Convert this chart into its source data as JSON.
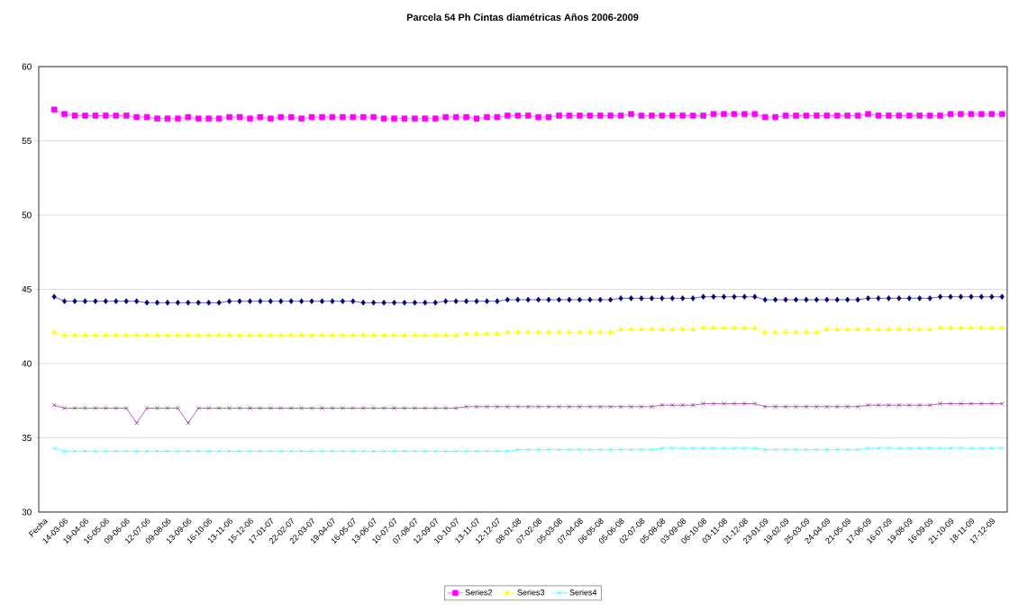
{
  "chart_data": {
    "type": "line",
    "title": "Parcela 54 Ph Cintas diamétricas Años 2006-2009",
    "categories": [
      "Fecha",
      null,
      "14-03-06",
      null,
      "19-04-06",
      null,
      "16-05-06",
      null,
      "09-06-06",
      null,
      "12-07-06",
      null,
      "09-08-06",
      null,
      "13-09-06",
      null,
      "16-10-06",
      null,
      "13-11-06",
      null,
      "15-12-06",
      null,
      "17-01-07",
      null,
      "22-02-07",
      null,
      "22-03-07",
      null,
      "19-04-07",
      null,
      "16-05-07",
      null,
      "13-06-07",
      null,
      "10-07-07",
      null,
      "07-08-07",
      null,
      "12-09-07",
      null,
      "10-10-07",
      null,
      "13-11-07",
      null,
      "12-12-07",
      null,
      "08-01-08",
      null,
      "07-02-08",
      null,
      "05-03-08",
      null,
      "07-04-08",
      null,
      "06-05-08",
      null,
      "05-06-08",
      null,
      "02-07-08",
      null,
      "05-08-08",
      null,
      "03-09-08",
      null,
      "06-10-08",
      null,
      "03-11-08",
      null,
      "01-12-08",
      null,
      "23-01-09",
      null,
      "19-02-09",
      null,
      "25-03-09",
      null,
      "24-04-09",
      null,
      "21-05-09",
      null,
      "17-06-09",
      null,
      "16-07-09",
      null,
      "19-08-09",
      null,
      "16-09-09",
      null,
      "21-10-09",
      null,
      "18-11-09",
      null,
      "17-12-09",
      null
    ],
    "series": [
      {
        "color": "#000080",
        "marker": "diamond",
        "values": [
          null,
          44.5,
          44.2,
          44.2,
          44.2,
          44.2,
          44.2,
          44.2,
          44.2,
          44.2,
          44.1,
          44.1,
          44.1,
          44.1,
          44.1,
          44.1,
          44.1,
          44.1,
          44.2,
          44.2,
          44.2,
          44.2,
          44.2,
          44.2,
          44.2,
          44.2,
          44.2,
          44.2,
          44.2,
          44.2,
          44.2,
          44.1,
          44.1,
          44.1,
          44.1,
          44.1,
          44.1,
          44.1,
          44.1,
          44.2,
          44.2,
          44.2,
          44.2,
          44.2,
          44.2,
          44.3,
          44.3,
          44.3,
          44.3,
          44.3,
          44.3,
          44.3,
          44.3,
          44.3,
          44.3,
          44.3,
          44.4,
          44.4,
          44.4,
          44.4,
          44.4,
          44.4,
          44.4,
          44.4,
          44.5,
          44.5,
          44.5,
          44.5,
          44.5,
          44.5,
          44.3,
          44.3,
          44.3,
          44.3,
          44.3,
          44.3,
          44.3,
          44.3,
          44.3,
          44.3,
          44.4,
          44.4,
          44.4,
          44.4,
          44.4,
          44.4,
          44.4,
          44.5,
          44.5,
          44.5,
          44.5,
          44.5,
          44.5,
          44.5
        ]
      },
      {
        "name": "Series2",
        "color": "#ff00ff",
        "marker": "square",
        "values": [
          null,
          57.1,
          56.8,
          56.7,
          56.7,
          56.7,
          56.7,
          56.7,
          56.7,
          56.6,
          56.6,
          56.5,
          56.5,
          56.5,
          56.6,
          56.5,
          56.5,
          56.5,
          56.6,
          56.6,
          56.5,
          56.6,
          56.5,
          56.6,
          56.6,
          56.5,
          56.6,
          56.6,
          56.6,
          56.6,
          56.6,
          56.6,
          56.6,
          56.5,
          56.5,
          56.5,
          56.5,
          56.5,
          56.5,
          56.6,
          56.6,
          56.6,
          56.5,
          56.6,
          56.6,
          56.7,
          56.7,
          56.7,
          56.6,
          56.6,
          56.7,
          56.7,
          56.7,
          56.7,
          56.7,
          56.7,
          56.7,
          56.8,
          56.7,
          56.7,
          56.7,
          56.7,
          56.7,
          56.7,
          56.7,
          56.8,
          56.8,
          56.8,
          56.8,
          56.8,
          56.6,
          56.6,
          56.7,
          56.7,
          56.7,
          56.7,
          56.7,
          56.7,
          56.7,
          56.7,
          56.8,
          56.7,
          56.7,
          56.7,
          56.7,
          56.7,
          56.7,
          56.7,
          56.8,
          56.8,
          56.8,
          56.8,
          56.8,
          56.8
        ]
      },
      {
        "name": "Series3",
        "color": "#ffff00",
        "marker": "triangle",
        "values": [
          null,
          42.1,
          41.9,
          41.9,
          41.9,
          41.9,
          41.9,
          41.9,
          41.9,
          41.9,
          41.9,
          41.9,
          41.9,
          41.9,
          41.9,
          41.9,
          41.9,
          41.9,
          41.9,
          41.9,
          41.9,
          41.9,
          41.9,
          41.9,
          41.9,
          41.9,
          41.9,
          41.9,
          41.9,
          41.9,
          41.9,
          41.9,
          41.9,
          41.9,
          41.9,
          41.9,
          41.9,
          41.9,
          41.9,
          41.9,
          41.9,
          42.0,
          42.0,
          42.0,
          42.0,
          42.1,
          42.1,
          42.1,
          42.1,
          42.1,
          42.1,
          42.1,
          42.1,
          42.1,
          42.1,
          42.1,
          42.3,
          42.3,
          42.3,
          42.3,
          42.3,
          42.3,
          42.3,
          42.3,
          42.4,
          42.4,
          42.4,
          42.4,
          42.4,
          42.4,
          42.1,
          42.1,
          42.1,
          42.1,
          42.1,
          42.1,
          42.3,
          42.3,
          42.3,
          42.3,
          42.3,
          42.3,
          42.3,
          42.3,
          42.3,
          42.3,
          42.3,
          42.4,
          42.4,
          42.4,
          42.4,
          42.4,
          42.4,
          42.4
        ]
      },
      {
        "name": "Series4",
        "color": "#00ffff",
        "marker": "cross",
        "values": [
          null,
          34.3,
          34.1,
          34.1,
          34.1,
          34.1,
          34.1,
          34.1,
          34.1,
          34.1,
          34.1,
          34.1,
          34.1,
          34.1,
          34.1,
          34.1,
          34.1,
          34.1,
          34.1,
          34.1,
          34.1,
          34.1,
          34.1,
          34.1,
          34.1,
          34.1,
          34.1,
          34.1,
          34.1,
          34.1,
          34.1,
          34.1,
          34.1,
          34.1,
          34.1,
          34.1,
          34.1,
          34.1,
          34.1,
          34.1,
          34.1,
          34.1,
          34.1,
          34.1,
          34.1,
          34.1,
          34.2,
          34.2,
          34.2,
          34.2,
          34.2,
          34.2,
          34.2,
          34.2,
          34.2,
          34.2,
          34.2,
          34.2,
          34.2,
          34.2,
          34.3,
          34.3,
          34.3,
          34.3,
          34.3,
          34.3,
          34.3,
          34.3,
          34.3,
          34.3,
          34.2,
          34.2,
          34.2,
          34.2,
          34.2,
          34.2,
          34.2,
          34.2,
          34.2,
          34.2,
          34.3,
          34.3,
          34.3,
          34.3,
          34.3,
          34.3,
          34.3,
          34.3,
          34.3,
          34.3,
          34.3,
          34.3,
          34.3,
          34.3
        ]
      },
      {
        "color": "#800080",
        "marker": "cross",
        "values": [
          null,
          37.2,
          37.0,
          37.0,
          37.0,
          37.0,
          37.0,
          37.0,
          37.0,
          36.0,
          37.0,
          37.0,
          37.0,
          37.0,
          36.0,
          37.0,
          37.0,
          37.0,
          37.0,
          37.0,
          37.0,
          37.0,
          37.0,
          37.0,
          37.0,
          37.0,
          37.0,
          37.0,
          37.0,
          37.0,
          37.0,
          37.0,
          37.0,
          37.0,
          37.0,
          37.0,
          37.0,
          37.0,
          37.0,
          37.0,
          37.0,
          37.1,
          37.1,
          37.1,
          37.1,
          37.1,
          37.1,
          37.1,
          37.1,
          37.1,
          37.1,
          37.1,
          37.1,
          37.1,
          37.1,
          37.1,
          37.1,
          37.1,
          37.1,
          37.1,
          37.2,
          37.2,
          37.2,
          37.2,
          37.3,
          37.3,
          37.3,
          37.3,
          37.3,
          37.3,
          37.1,
          37.1,
          37.1,
          37.1,
          37.1,
          37.1,
          37.1,
          37.1,
          37.1,
          37.1,
          37.2,
          37.2,
          37.2,
          37.2,
          37.2,
          37.2,
          37.2,
          37.3,
          37.3,
          37.3,
          37.3,
          37.3,
          37.3,
          37.3
        ]
      }
    ],
    "ylim": [
      30,
      60
    ],
    "yticks": [
      30,
      35,
      40,
      45,
      50,
      55,
      60
    ],
    "grid": "y",
    "legend": "bottom"
  }
}
